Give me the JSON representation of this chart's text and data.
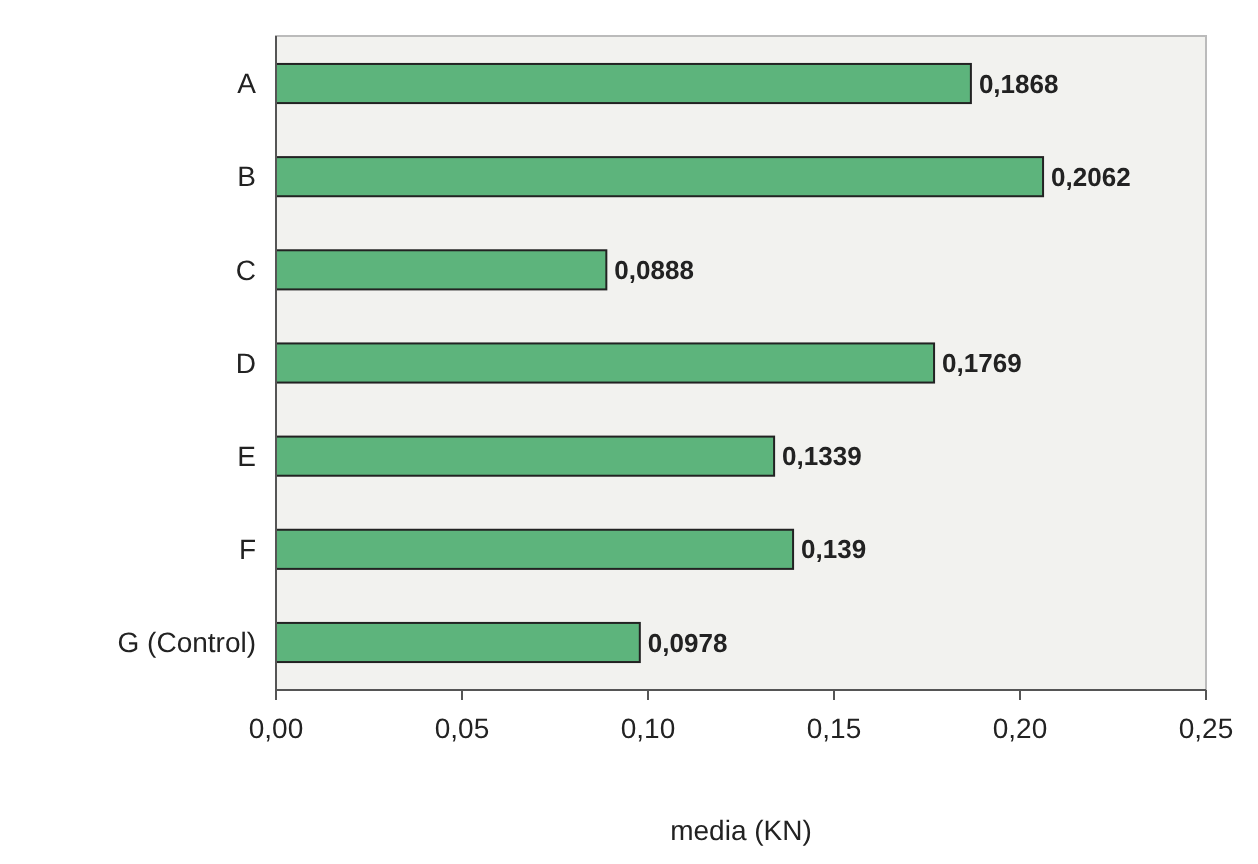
{
  "chart_data": {
    "type": "bar",
    "orientation": "horizontal",
    "xlabel": "media (KN)",
    "categories": [
      "A",
      "B",
      "C",
      "D",
      "E",
      "F",
      "G (Control)"
    ],
    "values": [
      0.1868,
      0.2062,
      0.0888,
      0.1769,
      0.1339,
      0.139,
      0.0978
    ],
    "value_labels": [
      "0,1868",
      "0,2062",
      "0,0888",
      "0,1769",
      "0,1339",
      "0,139",
      "0,0978"
    ],
    "color": "#5db47c",
    "xlim": [
      0,
      0.25
    ],
    "xticks": [
      {
        "value": 0,
        "label": "0,00"
      },
      {
        "value": 0.05,
        "label": "0,05"
      },
      {
        "value": 0.1,
        "label": "0,10"
      },
      {
        "value": 0.15,
        "label": "0,15"
      },
      {
        "value": 0.2,
        "label": "0,20"
      },
      {
        "value": 0.25,
        "label": "0,25"
      }
    ],
    "grid": false
  }
}
